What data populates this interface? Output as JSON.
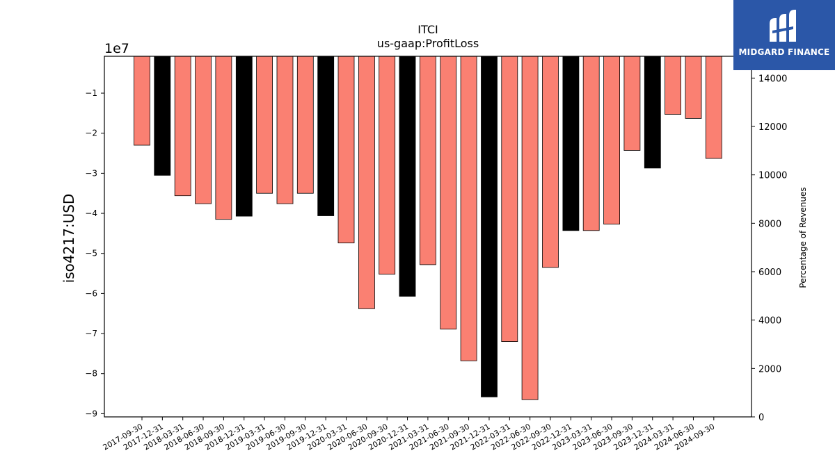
{
  "chart_data": {
    "type": "bar",
    "title": "ITCI",
    "subtitle": "us-gaap:ProfitLoss",
    "ylabel": "iso4217:USD",
    "y_offset_label": "1e7",
    "y2label": "Percentage of Revenues",
    "ylim": [
      -9.08,
      -0.08
    ],
    "y2lim": [
      0,
      14900
    ],
    "yticks": [
      -1,
      -2,
      -3,
      -4,
      -5,
      -6,
      -7,
      -8,
      -9
    ],
    "y2ticks": [
      0,
      2000,
      4000,
      6000,
      8000,
      10000,
      12000,
      14000
    ],
    "categories": [
      "2017-09-30",
      "2017-12-31",
      "2018-03-31",
      "2018-06-30",
      "2018-09-30",
      "2018-12-31",
      "2019-03-31",
      "2019-06-30",
      "2019-09-30",
      "2019-12-31",
      "2020-03-31",
      "2020-06-30",
      "2020-09-30",
      "2020-12-31",
      "2021-03-31",
      "2021-06-30",
      "2021-09-30",
      "2021-12-31",
      "2022-03-31",
      "2022-06-30",
      "2022-09-30",
      "2022-12-31",
      "2023-03-31",
      "2023-06-30",
      "2023-09-30",
      "2023-12-31",
      "2024-03-31",
      "2024-06-30",
      "2024-09-30"
    ],
    "values": [
      -2.3,
      -3.05,
      -3.56,
      -3.76,
      -4.15,
      -4.07,
      -3.5,
      -3.76,
      -3.5,
      -4.06,
      -4.74,
      -6.38,
      -5.52,
      -6.07,
      -5.28,
      -6.89,
      -7.68,
      -8.58,
      -7.2,
      -8.65,
      -5.35,
      -4.43,
      -4.43,
      -4.27,
      -2.43,
      -2.87,
      -1.53,
      -1.63,
      -2.63
    ],
    "annual_flags": [
      false,
      true,
      false,
      false,
      false,
      true,
      false,
      false,
      false,
      true,
      false,
      false,
      false,
      true,
      false,
      false,
      false,
      true,
      false,
      false,
      false,
      true,
      false,
      false,
      false,
      true,
      false,
      false,
      false
    ],
    "colors": {
      "quarterly": "#fa8072",
      "annual": "#000000",
      "edge": "#000000"
    }
  },
  "logo": {
    "text": "MIDGARD FINANCE",
    "background": "#2b57a8"
  }
}
